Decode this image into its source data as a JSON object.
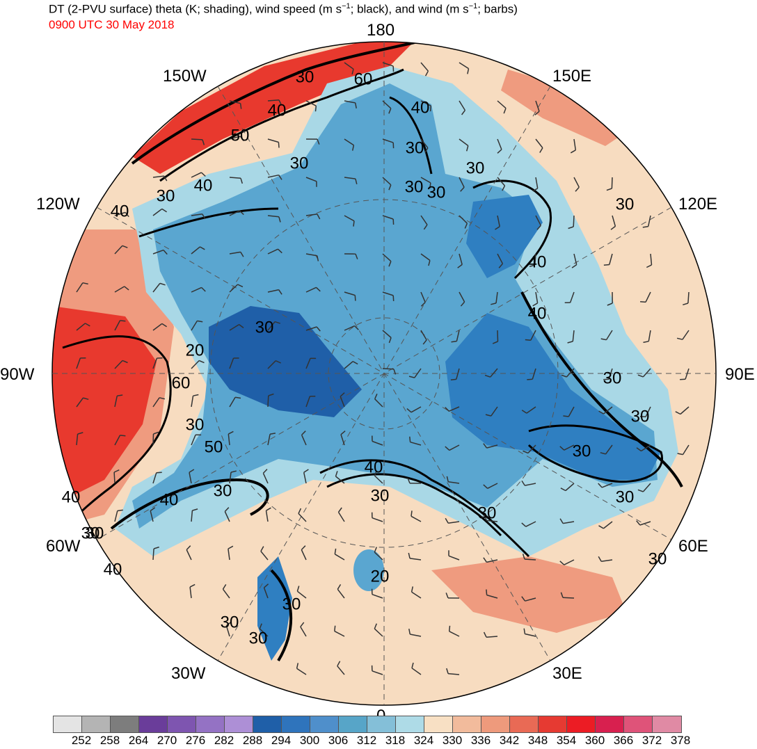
{
  "header": {
    "title_parts": [
      "DT (2-PVU surface) theta (K; shading), wind speed (m s",
      "−1",
      "; black), and wind (m s",
      "−1",
      "; barbs)"
    ],
    "valid_time": "0900 UTC 30 May 2018",
    "valid_time_color": "#ff0000"
  },
  "map": {
    "projection": "north-polar-stereographic",
    "longitude_labels": [
      "180",
      "150E",
      "120E",
      "90E",
      "60E",
      "30E",
      "0",
      "30W",
      "60W",
      "90W",
      "120W",
      "150W"
    ],
    "contour_labels": [
      "30",
      "40",
      "60",
      "40",
      "30",
      "30",
      "50",
      "40",
      "30",
      "40",
      "30",
      "30",
      "30",
      "40",
      "40",
      "30",
      "30",
      "30",
      "40",
      "30",
      "60",
      "50",
      "20",
      "30",
      "30",
      "30",
      "40",
      "40",
      "30",
      "40",
      "30",
      "30",
      "30",
      "20",
      "30",
      "30",
      "30",
      "30",
      "30"
    ],
    "colors": {
      "cold_core": "#2f7fc1",
      "cold_deep": "#1f5fa8",
      "cool": "#5aa6d0",
      "cool_light": "#a9d8e6",
      "warm_light": "#f7dcc0",
      "warm": "#ef9b7f",
      "hot": "#e8392e",
      "contour": "#000000",
      "coastline": "#3a3a3a"
    }
  },
  "colorbar": {
    "levels": [
      "252",
      "258",
      "264",
      "270",
      "276",
      "282",
      "288",
      "294",
      "300",
      "306",
      "312",
      "318",
      "324",
      "330",
      "336",
      "342",
      "348",
      "354",
      "360",
      "366",
      "372",
      "378"
    ],
    "colors": [
      "#e4e4e4",
      "#b4b4b4",
      "#7d7d7d",
      "#6a3d9a",
      "#7e55b0",
      "#9472c4",
      "#ad8fd6",
      "#1f5fa8",
      "#2f74bc",
      "#4f8fcb",
      "#57a5c8",
      "#84bfd8",
      "#aedbe7",
      "#f8e0c4",
      "#f2bb9c",
      "#ee9a7c",
      "#e96a55",
      "#e63a32",
      "#ec1c24",
      "#d8204f",
      "#df5379",
      "#e08aa4"
    ]
  }
}
